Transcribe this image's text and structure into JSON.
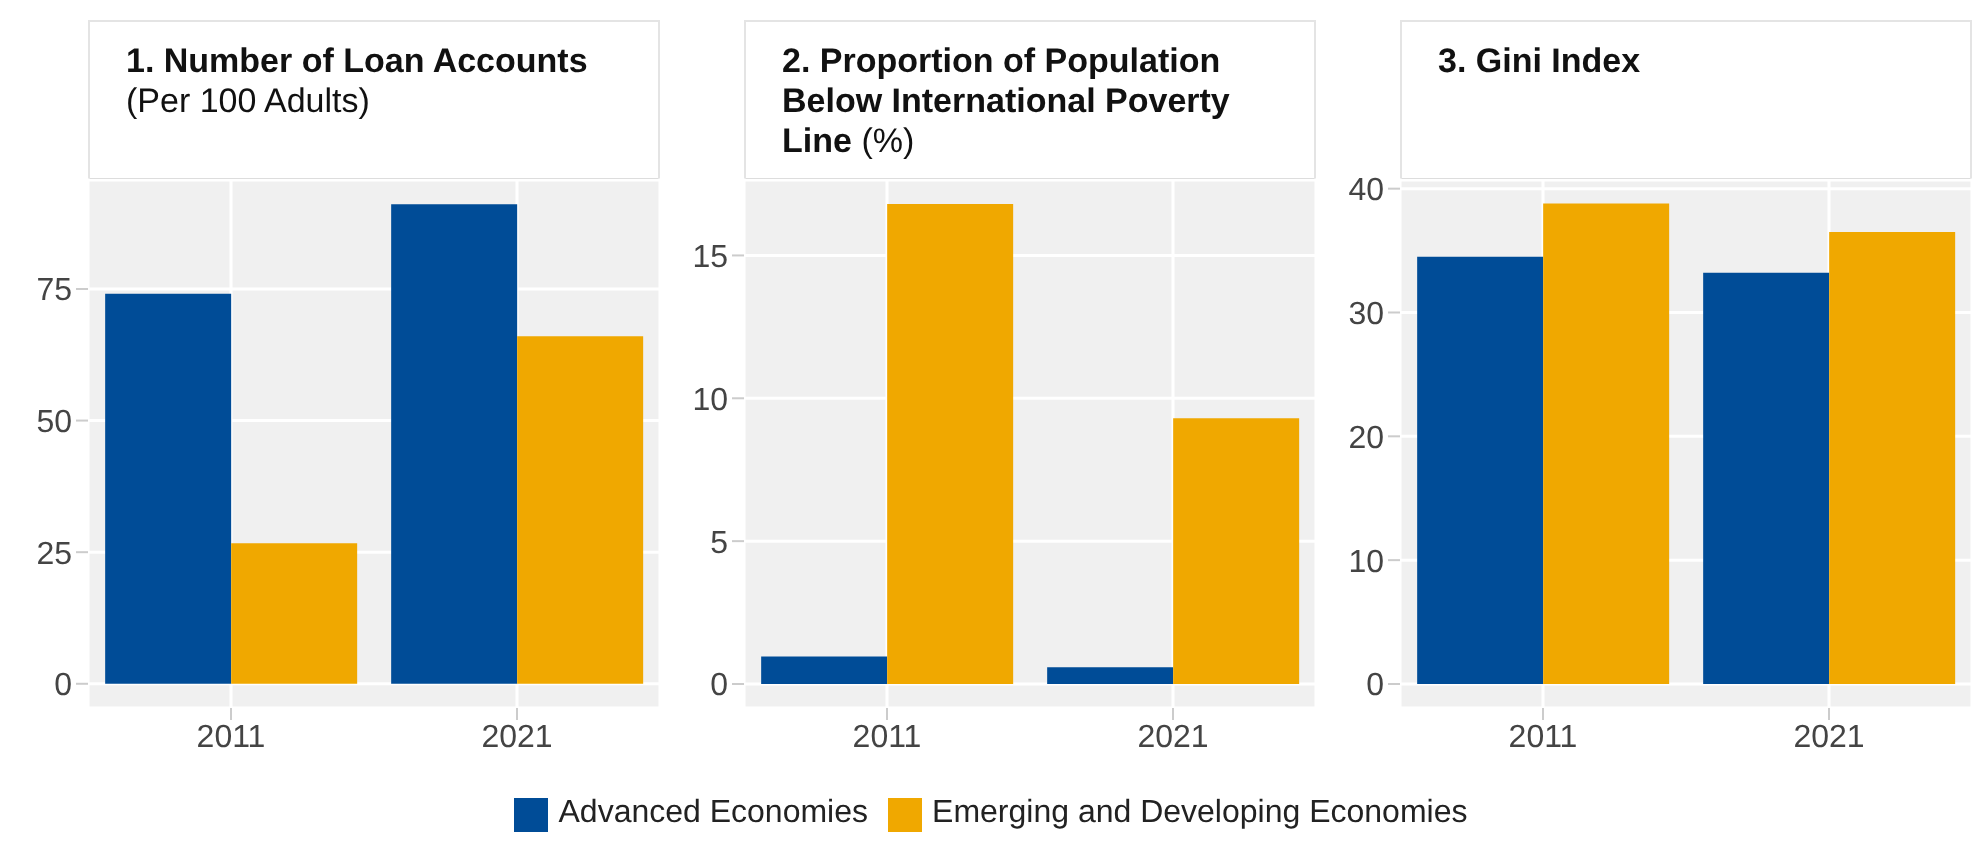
{
  "chart_data": [
    {
      "type": "bar",
      "title": "1. Number of Loan Accounts",
      "subtitle": "(Per 100 Adults)",
      "categories": [
        "2011",
        "2021"
      ],
      "series": [
        {
          "name": "Advanced Economies",
          "color": "#004c97",
          "values": [
            74.1,
            91.1
          ]
        },
        {
          "name": "Emerging and Developing Economies",
          "color": "#f0a800",
          "values": [
            26.7,
            66.0
          ]
        }
      ],
      "ylim": [
        -4.6,
        95.7
      ],
      "yticks": [
        0,
        25,
        50,
        75
      ],
      "grid": true,
      "legend": "bottom"
    },
    {
      "type": "bar",
      "title": "2. Proportion of Population Below International Poverty Line",
      "subtitle": "(%)",
      "categories": [
        "2011",
        "2021"
      ],
      "series": [
        {
          "color": "#004c97",
          "values": [
            0.96,
            0.59
          ]
        },
        {
          "color": "#f0a800",
          "values": [
            16.8,
            9.3
          ]
        }
      ],
      "ylim": [
        -0.84,
        17.64
      ],
      "yticks": [
        0,
        5,
        10,
        15
      ],
      "grid": true
    },
    {
      "type": "bar",
      "title": "3. Gini Index",
      "categories": [
        "2011",
        "2021"
      ],
      "series": [
        {
          "color": "#004c97",
          "values": [
            34.5,
            33.2
          ]
        },
        {
          "color": "#f0a800",
          "values": [
            38.8,
            36.5
          ]
        }
      ],
      "ylim": [
        -1.94,
        40.7
      ],
      "yticks": [
        0,
        10,
        20,
        30,
        40
      ],
      "grid": true
    }
  ]
}
